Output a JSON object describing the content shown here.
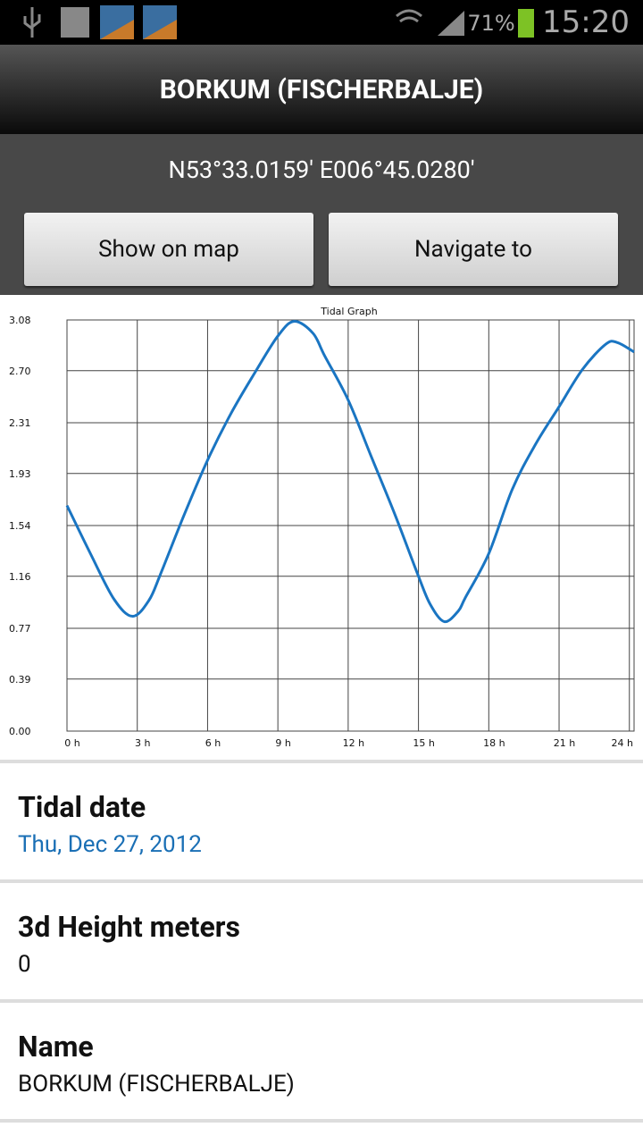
{
  "status_bar": {
    "battery": "71%",
    "time": "15:20"
  },
  "header": {
    "title": "BORKUM (FISCHERBALJE)"
  },
  "coordinates": "N53°33.0159' E006°45.0280'",
  "buttons": [
    "Show on map",
    "Navigate to"
  ],
  "chart_data": {
    "type": "line",
    "title": "Tidal Graph",
    "x": [
      0,
      1,
      2,
      2.8,
      3.5,
      4,
      5,
      6,
      7,
      8,
      9,
      9.7,
      10.5,
      11,
      12,
      13,
      14,
      15,
      15.5,
      16.1,
      16.7,
      17,
      18,
      19,
      20,
      21,
      22,
      23,
      23.5,
      24.2
    ],
    "series": [
      {
        "color": "#1a75c2",
        "values": [
          1.69,
          1.33,
          0.99,
          0.86,
          0.98,
          1.18,
          1.62,
          2.03,
          2.38,
          2.68,
          2.96,
          3.07,
          2.98,
          2.81,
          2.48,
          2.05,
          1.62,
          1.16,
          0.95,
          0.82,
          0.9,
          1.0,
          1.33,
          1.81,
          2.15,
          2.43,
          2.71,
          2.9,
          2.91,
          2.84
        ]
      }
    ],
    "xlim": [
      0,
      24.2
    ],
    "xticks": [
      {
        "value": 0,
        "label": "0 h"
      },
      {
        "value": 3,
        "label": "3 h"
      },
      {
        "value": 6,
        "label": "6 h"
      },
      {
        "value": 9,
        "label": "9 h"
      },
      {
        "value": 12,
        "label": "12 h"
      },
      {
        "value": 15,
        "label": "15 h"
      },
      {
        "value": 18,
        "label": "18 h"
      },
      {
        "value": 21,
        "label": "21 h"
      },
      {
        "value": 24,
        "label": "24 h"
      }
    ],
    "ylim": [
      0,
      3.08
    ],
    "yticks": [
      {
        "value": 0,
        "label": "0.00"
      },
      0.39,
      0.77,
      1.16,
      1.54,
      1.93,
      2.31,
      {
        "value": 2.7,
        "label": "2.70"
      },
      3.08
    ],
    "grid": true
  },
  "details": [
    {
      "label": "Tidal date",
      "value": "Thu, Dec 27, 2012"
    },
    {
      "label": "3d Height meters",
      "value": "0"
    },
    {
      "label": "Name",
      "value": "BORKUM (FISCHERBALJE)"
    }
  ]
}
